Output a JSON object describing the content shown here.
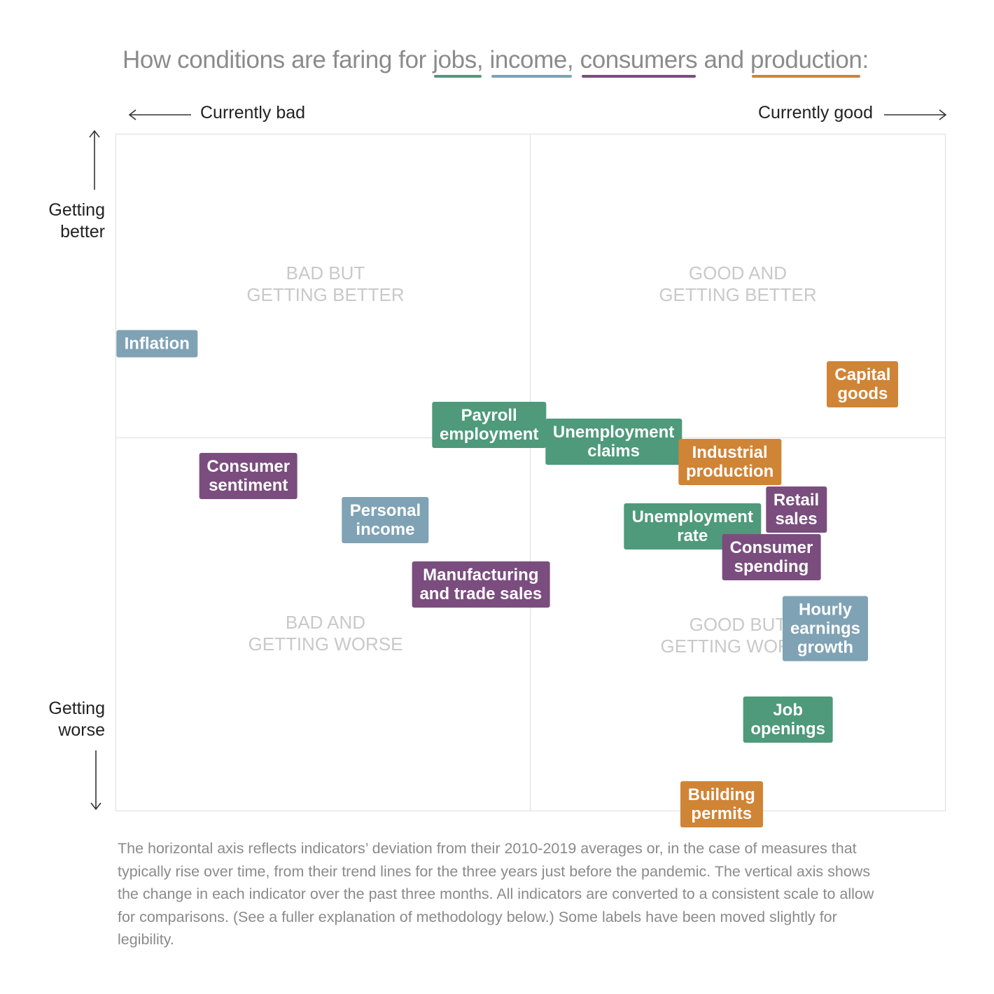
{
  "title": {
    "prefix": "How conditions are faring for ",
    "jobs": "jobs,",
    "income": "income,",
    "consumers": "consumers",
    "and": " and ",
    "production": "production",
    "suffix": ":"
  },
  "axis": {
    "left_label": "Currently bad",
    "right_label": "Currently good",
    "top_label": "Getting\nbetter",
    "bottom_label": "Getting\nworse"
  },
  "quadrants": {
    "top_left": "BAD BUT\nGETTING BETTER",
    "top_right": "GOOD AND\nGETTING BETTER",
    "bottom_left": "BAD AND\nGETTING WORSE",
    "bottom_right": "GOOD BUT\nGETTING WORSE"
  },
  "colors": {
    "jobs": "#4e9a7b",
    "income": "#7fa2b5",
    "consumers": "#7a4d7e",
    "production": "#cf8436"
  },
  "chart_data": {
    "type": "scatter",
    "xlim": [
      -1,
      1
    ],
    "ylim": [
      -1,
      1
    ],
    "points": [
      {
        "label": "Inflation",
        "category": "income",
        "x": -0.9,
        "y": 0.38
      },
      {
        "label": "Capital\ngoods",
        "category": "production",
        "x": 0.8,
        "y": 0.26
      },
      {
        "label": "Payroll\nemployment",
        "category": "jobs",
        "x": -0.1,
        "y": 0.14
      },
      {
        "label": "Unemployment\nclaims",
        "category": "jobs",
        "x": 0.2,
        "y": 0.09
      },
      {
        "label": "Industrial\nproduction",
        "category": "production",
        "x": 0.48,
        "y": 0.03
      },
      {
        "label": "Consumer\nsentiment",
        "category": "consumers",
        "x": -0.68,
        "y": -0.01
      },
      {
        "label": "Retail\nsales",
        "category": "consumers",
        "x": 0.64,
        "y": -0.11
      },
      {
        "label": "Personal\nincome",
        "category": "income",
        "x": -0.35,
        "y": -0.14
      },
      {
        "label": "Unemployment\nrate",
        "category": "jobs",
        "x": 0.39,
        "y": -0.16
      },
      {
        "label": "Consumer\nspending",
        "category": "consumers",
        "x": 0.58,
        "y": -0.25
      },
      {
        "label": "Manufacturing\nand trade sales",
        "category": "consumers",
        "x": -0.12,
        "y": -0.33
      },
      {
        "label": "Hourly\nearnings\ngrowth",
        "category": "income",
        "x": 0.71,
        "y": -0.46
      },
      {
        "label": "Job\nopenings",
        "category": "jobs",
        "x": 0.62,
        "y": -0.73
      },
      {
        "label": "Building\npermits",
        "category": "production",
        "x": 0.46,
        "y": -0.98
      }
    ]
  },
  "note": "The horizontal axis reflects indicators’ deviation from their 2010-2019 averages or, in the case of measures that typically rise over time, from their trend lines for the three years just before the pandemic. The vertical axis shows the change in each indicator over the past three months. All indicators are converted to a consistent scale to allow for comparisons. (See a fuller explanation of methodology below.) Some labels have been moved slightly for legibility."
}
